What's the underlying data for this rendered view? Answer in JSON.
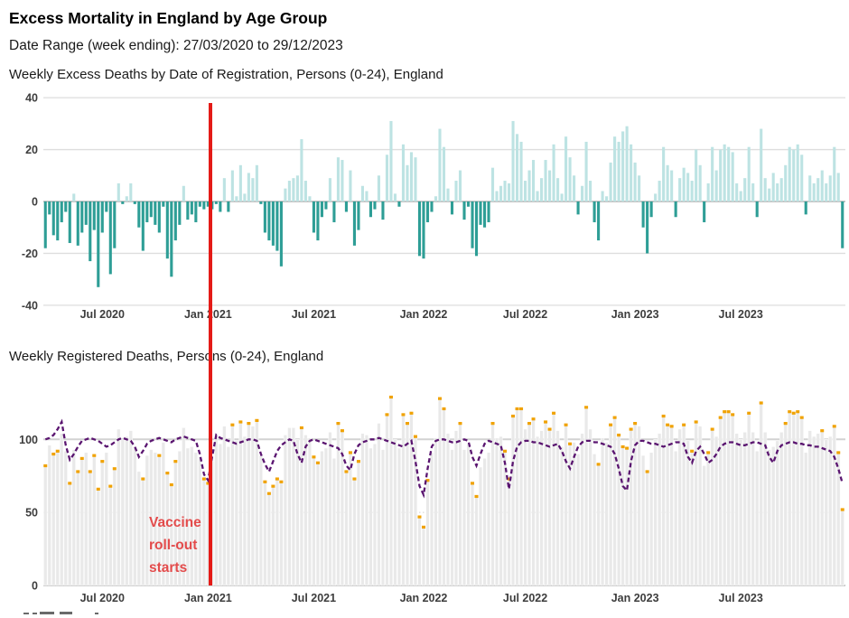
{
  "page": {
    "title": "Excess Mortality in England by Age Group",
    "subtitle": "Date Range (week ending): 27/03/2020 to 29/12/2023"
  },
  "annotation": {
    "lines": [
      "Vaccine",
      "roll-out",
      "starts"
    ],
    "vaccine_line_week": 41,
    "line_color": "#e41b17",
    "text_color": "#e34b4b"
  },
  "axis_style": {
    "tick_color": "#3d3d3d",
    "grid_color": "#dedede",
    "zero_line_color": "#c6c6c6"
  },
  "x_ticks": [
    {
      "label": "Jul 2020",
      "week": 14
    },
    {
      "label": "Jan 2021",
      "week": 40
    },
    {
      "label": "Jul 2021",
      "week": 66
    },
    {
      "label": "Jan 2022",
      "week": 93
    },
    {
      "label": "Jul 2022",
      "week": 118
    },
    {
      "label": "Jan 2023",
      "week": 145
    },
    {
      "label": "Jul 2023",
      "week": 171
    }
  ],
  "chart_data": [
    {
      "type": "bar",
      "title": "Weekly Excess Deaths by Date of Registration, Persons (0-24), England",
      "x_unit": "week ending, 27/03/2020 to 29/12/2023",
      "ylim": [
        -40,
        40
      ],
      "y_ticks": [
        40,
        20,
        0,
        -20,
        -40
      ],
      "grid": true,
      "colors": {
        "positive": "#bde3e3",
        "negative": "#2e9e96"
      },
      "values": [
        -18,
        -5,
        -13,
        -15,
        -8,
        -4,
        -16,
        3,
        -17,
        -12,
        -9,
        -23,
        -11,
        -33,
        -12,
        -4,
        -28,
        -18,
        7,
        -1,
        2,
        7,
        -1,
        -10,
        -19,
        -8,
        -6,
        -9,
        -12,
        -2,
        -22,
        -29,
        -15,
        -9,
        6,
        -7,
        -5,
        -8,
        -2,
        -3,
        -2,
        -3,
        -1,
        -4,
        9,
        -4,
        12,
        2,
        14,
        3,
        11,
        9,
        14,
        -1,
        -12,
        -15,
        -17,
        -19,
        -25,
        5,
        8,
        9,
        10,
        24,
        8,
        2,
        -12,
        -15,
        -6,
        -3,
        9,
        -8,
        17,
        16,
        -4,
        12,
        -17,
        -11,
        6,
        4,
        -6,
        -3,
        10,
        -7,
        18,
        31,
        3,
        -2,
        22,
        14,
        19,
        17,
        -21,
        -22,
        -8,
        -4,
        2,
        28,
        21,
        5,
        -5,
        8,
        12,
        -7,
        -2,
        -18,
        -21,
        -9,
        -10,
        -8,
        13,
        4,
        6,
        8,
        7,
        31,
        26,
        23,
        8,
        12,
        16,
        4,
        9,
        16,
        12,
        22,
        9,
        3,
        25,
        17,
        10,
        -5,
        6,
        23,
        8,
        -8,
        -15,
        4,
        2,
        15,
        25,
        23,
        27,
        29,
        22,
        15,
        10,
        -10,
        -20,
        -6,
        3,
        8,
        21,
        14,
        12,
        -6,
        9,
        13,
        11,
        8,
        20,
        14,
        -8,
        7,
        21,
        12,
        20,
        22,
        21,
        19,
        7,
        4,
        9,
        21,
        7,
        -6,
        28,
        9,
        5,
        11,
        7,
        9,
        14,
        21,
        20,
        22,
        18,
        -5,
        10,
        7,
        9,
        12,
        7,
        10,
        21,
        11,
        -18
      ]
    },
    {
      "type": "bar+line",
      "title": "Weekly Registered Deaths, Persons (0-24), England",
      "x_unit": "week ending, 27/03/2020 to 29/12/2023",
      "ylim": [
        0,
        135
      ],
      "y_ticks": [
        100,
        50,
        0
      ],
      "grid": "solid at 100, dotted at 50",
      "colors": {
        "bar": "#e9e9e9",
        "bar_edge": "#ffffff",
        "marker": "#f0a202",
        "expected_line": "#5a1570"
      },
      "bars_note": "registered deaths bar = expected_line value + excess value from chart_data[0]",
      "expected_line": [
        100,
        101,
        103,
        107,
        112,
        96,
        86,
        90,
        95,
        99,
        100,
        101,
        100,
        99,
        97,
        95,
        96,
        98,
        100,
        101,
        100,
        99,
        95,
        88,
        92,
        97,
        99,
        100,
        101,
        100,
        99,
        98,
        100,
        101,
        102,
        101,
        100,
        99,
        90,
        76,
        72,
        88,
        103,
        101,
        100,
        99,
        98,
        97,
        98,
        99,
        100,
        100,
        99,
        90,
        83,
        78,
        85,
        92,
        96,
        98,
        100,
        99,
        90,
        84,
        95,
        99,
        100,
        99,
        98,
        97,
        96,
        95,
        94,
        90,
        82,
        79,
        90,
        96,
        98,
        99,
        100,
        100,
        101,
        100,
        99,
        98,
        97,
        96,
        95,
        97,
        99,
        85,
        68,
        62,
        80,
        95,
        99,
        100,
        100,
        99,
        98,
        98,
        99,
        100,
        99,
        88,
        82,
        90,
        97,
        99,
        98,
        97,
        96,
        84,
        66,
        85,
        95,
        98,
        99,
        99,
        98,
        98,
        97,
        96,
        95,
        96,
        97,
        92,
        85,
        80,
        88,
        95,
        98,
        99,
        99,
        98,
        98,
        97,
        96,
        95,
        90,
        80,
        68,
        65,
        85,
        96,
        99,
        99,
        98,
        97,
        97,
        96,
        95,
        96,
        97,
        98,
        98,
        97,
        88,
        84,
        92,
        95,
        90,
        84,
        86,
        90,
        95,
        97,
        98,
        98,
        97,
        96,
        96,
        97,
        98,
        98,
        97,
        96,
        88,
        84,
        92,
        96,
        97,
        98,
        98,
        97,
        97,
        96,
        96,
        95,
        95,
        94,
        93,
        92,
        88,
        80,
        70
      ],
      "marker_weeks": [
        0,
        2,
        3,
        6,
        8,
        9,
        11,
        12,
        13,
        14,
        16,
        17,
        24,
        28,
        30,
        31,
        32,
        39,
        40,
        46,
        48,
        50,
        52,
        54,
        55,
        56,
        57,
        58,
        63,
        66,
        67,
        72,
        73,
        74,
        75,
        76,
        77,
        84,
        85,
        88,
        89,
        90,
        91,
        92,
        93,
        94,
        97,
        98,
        102,
        105,
        106,
        110,
        113,
        114,
        115,
        116,
        117,
        119,
        120,
        123,
        124,
        125,
        128,
        129,
        133,
        136,
        139,
        140,
        141,
        142,
        143,
        144,
        145,
        148,
        152,
        153,
        154,
        157,
        159,
        160,
        163,
        164,
        166,
        167,
        168,
        169,
        173,
        176,
        182,
        183,
        184,
        185,
        186,
        191,
        194,
        195,
        196
      ]
    }
  ]
}
